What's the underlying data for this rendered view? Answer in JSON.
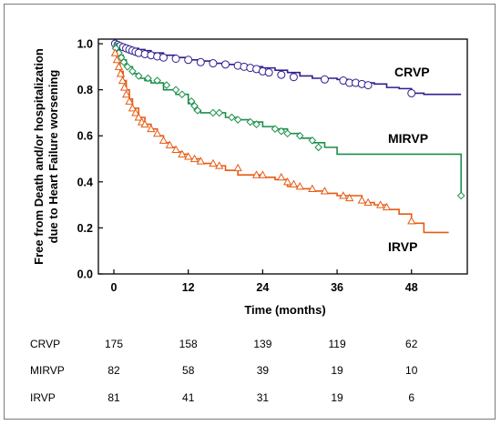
{
  "chart_data": {
    "type": "line",
    "xlabel": "Time (months)",
    "ylabel_line1": "Free from Death and/or hospitalization",
    "ylabel_line2": "due to Heart Failure worsening",
    "xticks": [
      0,
      12,
      24,
      36,
      48
    ],
    "yticks": [
      "0.0",
      "0.2",
      "0.4",
      "0.6",
      "0.8",
      "1.0"
    ],
    "xlim": [
      -2.5,
      57
    ],
    "ylim": [
      0,
      1.02
    ],
    "series": [
      {
        "name": "CRVP",
        "color": "#2e1f8f",
        "marker": "circle",
        "x": [
          0,
          1,
          2,
          3,
          4,
          5,
          6,
          8,
          10,
          12,
          14,
          16,
          18,
          20,
          22,
          24,
          26,
          28,
          30,
          32,
          34,
          36,
          38,
          40,
          42,
          44,
          46,
          48,
          50,
          53,
          56
        ],
        "y": [
          1.0,
          0.99,
          0.985,
          0.98,
          0.975,
          0.97,
          0.96,
          0.95,
          0.94,
          0.93,
          0.925,
          0.915,
          0.91,
          0.905,
          0.9,
          0.895,
          0.885,
          0.875,
          0.86,
          0.85,
          0.85,
          0.845,
          0.835,
          0.83,
          0.825,
          0.81,
          0.805,
          0.785,
          0.78,
          0.78,
          0.78
        ],
        "markers_x": [
          0.2,
          0.6,
          1,
          1.5,
          2,
          2.5,
          3,
          3.5,
          4,
          5,
          6,
          7,
          8,
          10,
          12,
          14,
          16,
          18,
          20,
          21,
          22,
          23,
          24,
          25,
          27,
          29,
          34,
          37,
          38,
          39,
          40,
          41,
          48
        ],
        "markers_y": [
          1.0,
          0.995,
          0.99,
          0.985,
          0.98,
          0.975,
          0.97,
          0.965,
          0.96,
          0.955,
          0.95,
          0.945,
          0.94,
          0.935,
          0.93,
          0.92,
          0.915,
          0.91,
          0.905,
          0.9,
          0.895,
          0.89,
          0.88,
          0.875,
          0.865,
          0.855,
          0.845,
          0.84,
          0.83,
          0.83,
          0.825,
          0.82,
          0.785
        ]
      },
      {
        "name": "MIRVP",
        "color": "#1a8f4a",
        "marker": "diamond",
        "x": [
          0,
          0.5,
          1,
          1.5,
          2,
          3,
          4,
          5,
          6,
          8,
          10,
          12,
          13,
          14,
          16,
          18,
          20,
          22,
          24,
          26,
          28,
          30,
          32,
          34,
          36,
          38,
          40,
          42,
          44,
          46,
          48,
          50,
          54,
          55,
          56
        ],
        "y": [
          1.0,
          0.97,
          0.95,
          0.93,
          0.9,
          0.87,
          0.85,
          0.84,
          0.83,
          0.8,
          0.78,
          0.74,
          0.71,
          0.7,
          0.7,
          0.68,
          0.67,
          0.66,
          0.64,
          0.63,
          0.61,
          0.59,
          0.57,
          0.55,
          0.52,
          0.52,
          0.52,
          0.52,
          0.52,
          0.52,
          0.52,
          0.52,
          0.52,
          0.52,
          0.34
        ],
        "markers_x": [
          0.3,
          0.8,
          1.2,
          1.6,
          2.2,
          3,
          4,
          5.5,
          7,
          8.5,
          10,
          11,
          12.5,
          13,
          13.5,
          16,
          17,
          19,
          20,
          22,
          23,
          26,
          27,
          28,
          30,
          32,
          33,
          56
        ],
        "markers_y": [
          0.98,
          0.96,
          0.94,
          0.92,
          0.9,
          0.88,
          0.86,
          0.85,
          0.84,
          0.82,
          0.8,
          0.78,
          0.75,
          0.73,
          0.71,
          0.7,
          0.7,
          0.68,
          0.67,
          0.66,
          0.65,
          0.63,
          0.62,
          0.61,
          0.6,
          0.58,
          0.55,
          0.34
        ]
      },
      {
        "name": "IRVP",
        "color": "#e65a12",
        "marker": "triangle",
        "x": [
          0,
          0.5,
          1,
          1.5,
          2,
          2.5,
          3,
          4,
          5,
          6,
          7,
          8,
          9,
          10,
          11,
          12,
          14,
          16,
          18,
          20,
          22,
          24,
          26,
          28,
          30,
          32,
          34,
          36,
          38,
          40,
          42,
          44,
          46,
          48,
          50,
          52,
          54
        ],
        "y": [
          0.96,
          0.92,
          0.88,
          0.84,
          0.8,
          0.76,
          0.72,
          0.68,
          0.65,
          0.63,
          0.6,
          0.57,
          0.55,
          0.53,
          0.52,
          0.5,
          0.48,
          0.47,
          0.45,
          0.43,
          0.43,
          0.42,
          0.41,
          0.38,
          0.37,
          0.36,
          0.35,
          0.34,
          0.34,
          0.31,
          0.3,
          0.28,
          0.26,
          0.22,
          0.18,
          0.18,
          0.18
        ],
        "markers_x": [
          0.2,
          0.5,
          0.8,
          1.1,
          1.4,
          1.7,
          2,
          2.5,
          3,
          3.5,
          4,
          4.5,
          5,
          6,
          7,
          8,
          9,
          10,
          11,
          12,
          13,
          14,
          16,
          17,
          20,
          23,
          24,
          27,
          28,
          29,
          30,
          32,
          34,
          37,
          38,
          40,
          41,
          43,
          44,
          48
        ],
        "markers_y": [
          0.96,
          0.93,
          0.9,
          0.87,
          0.84,
          0.81,
          0.78,
          0.75,
          0.72,
          0.7,
          0.68,
          0.66,
          0.65,
          0.63,
          0.61,
          0.58,
          0.56,
          0.54,
          0.52,
          0.51,
          0.5,
          0.49,
          0.48,
          0.47,
          0.46,
          0.43,
          0.43,
          0.42,
          0.4,
          0.39,
          0.38,
          0.37,
          0.36,
          0.34,
          0.33,
          0.32,
          0.31,
          0.3,
          0.29,
          0.23
        ]
      }
    ],
    "series_labels": [
      "CRVP",
      "MIRVP",
      "IRVP"
    ],
    "risk_table": {
      "times": [
        0,
        12,
        24,
        36,
        48
      ],
      "rows": [
        {
          "label": "CRVP",
          "counts": [
            "175",
            "158",
            "139",
            "119",
            "62"
          ]
        },
        {
          "label": "MIRVP",
          "counts": [
            "82",
            "58",
            "39",
            "19",
            "10"
          ]
        },
        {
          "label": "IRVP",
          "counts": [
            "81",
            "41",
            "31",
            "19",
            "6"
          ]
        }
      ]
    }
  }
}
